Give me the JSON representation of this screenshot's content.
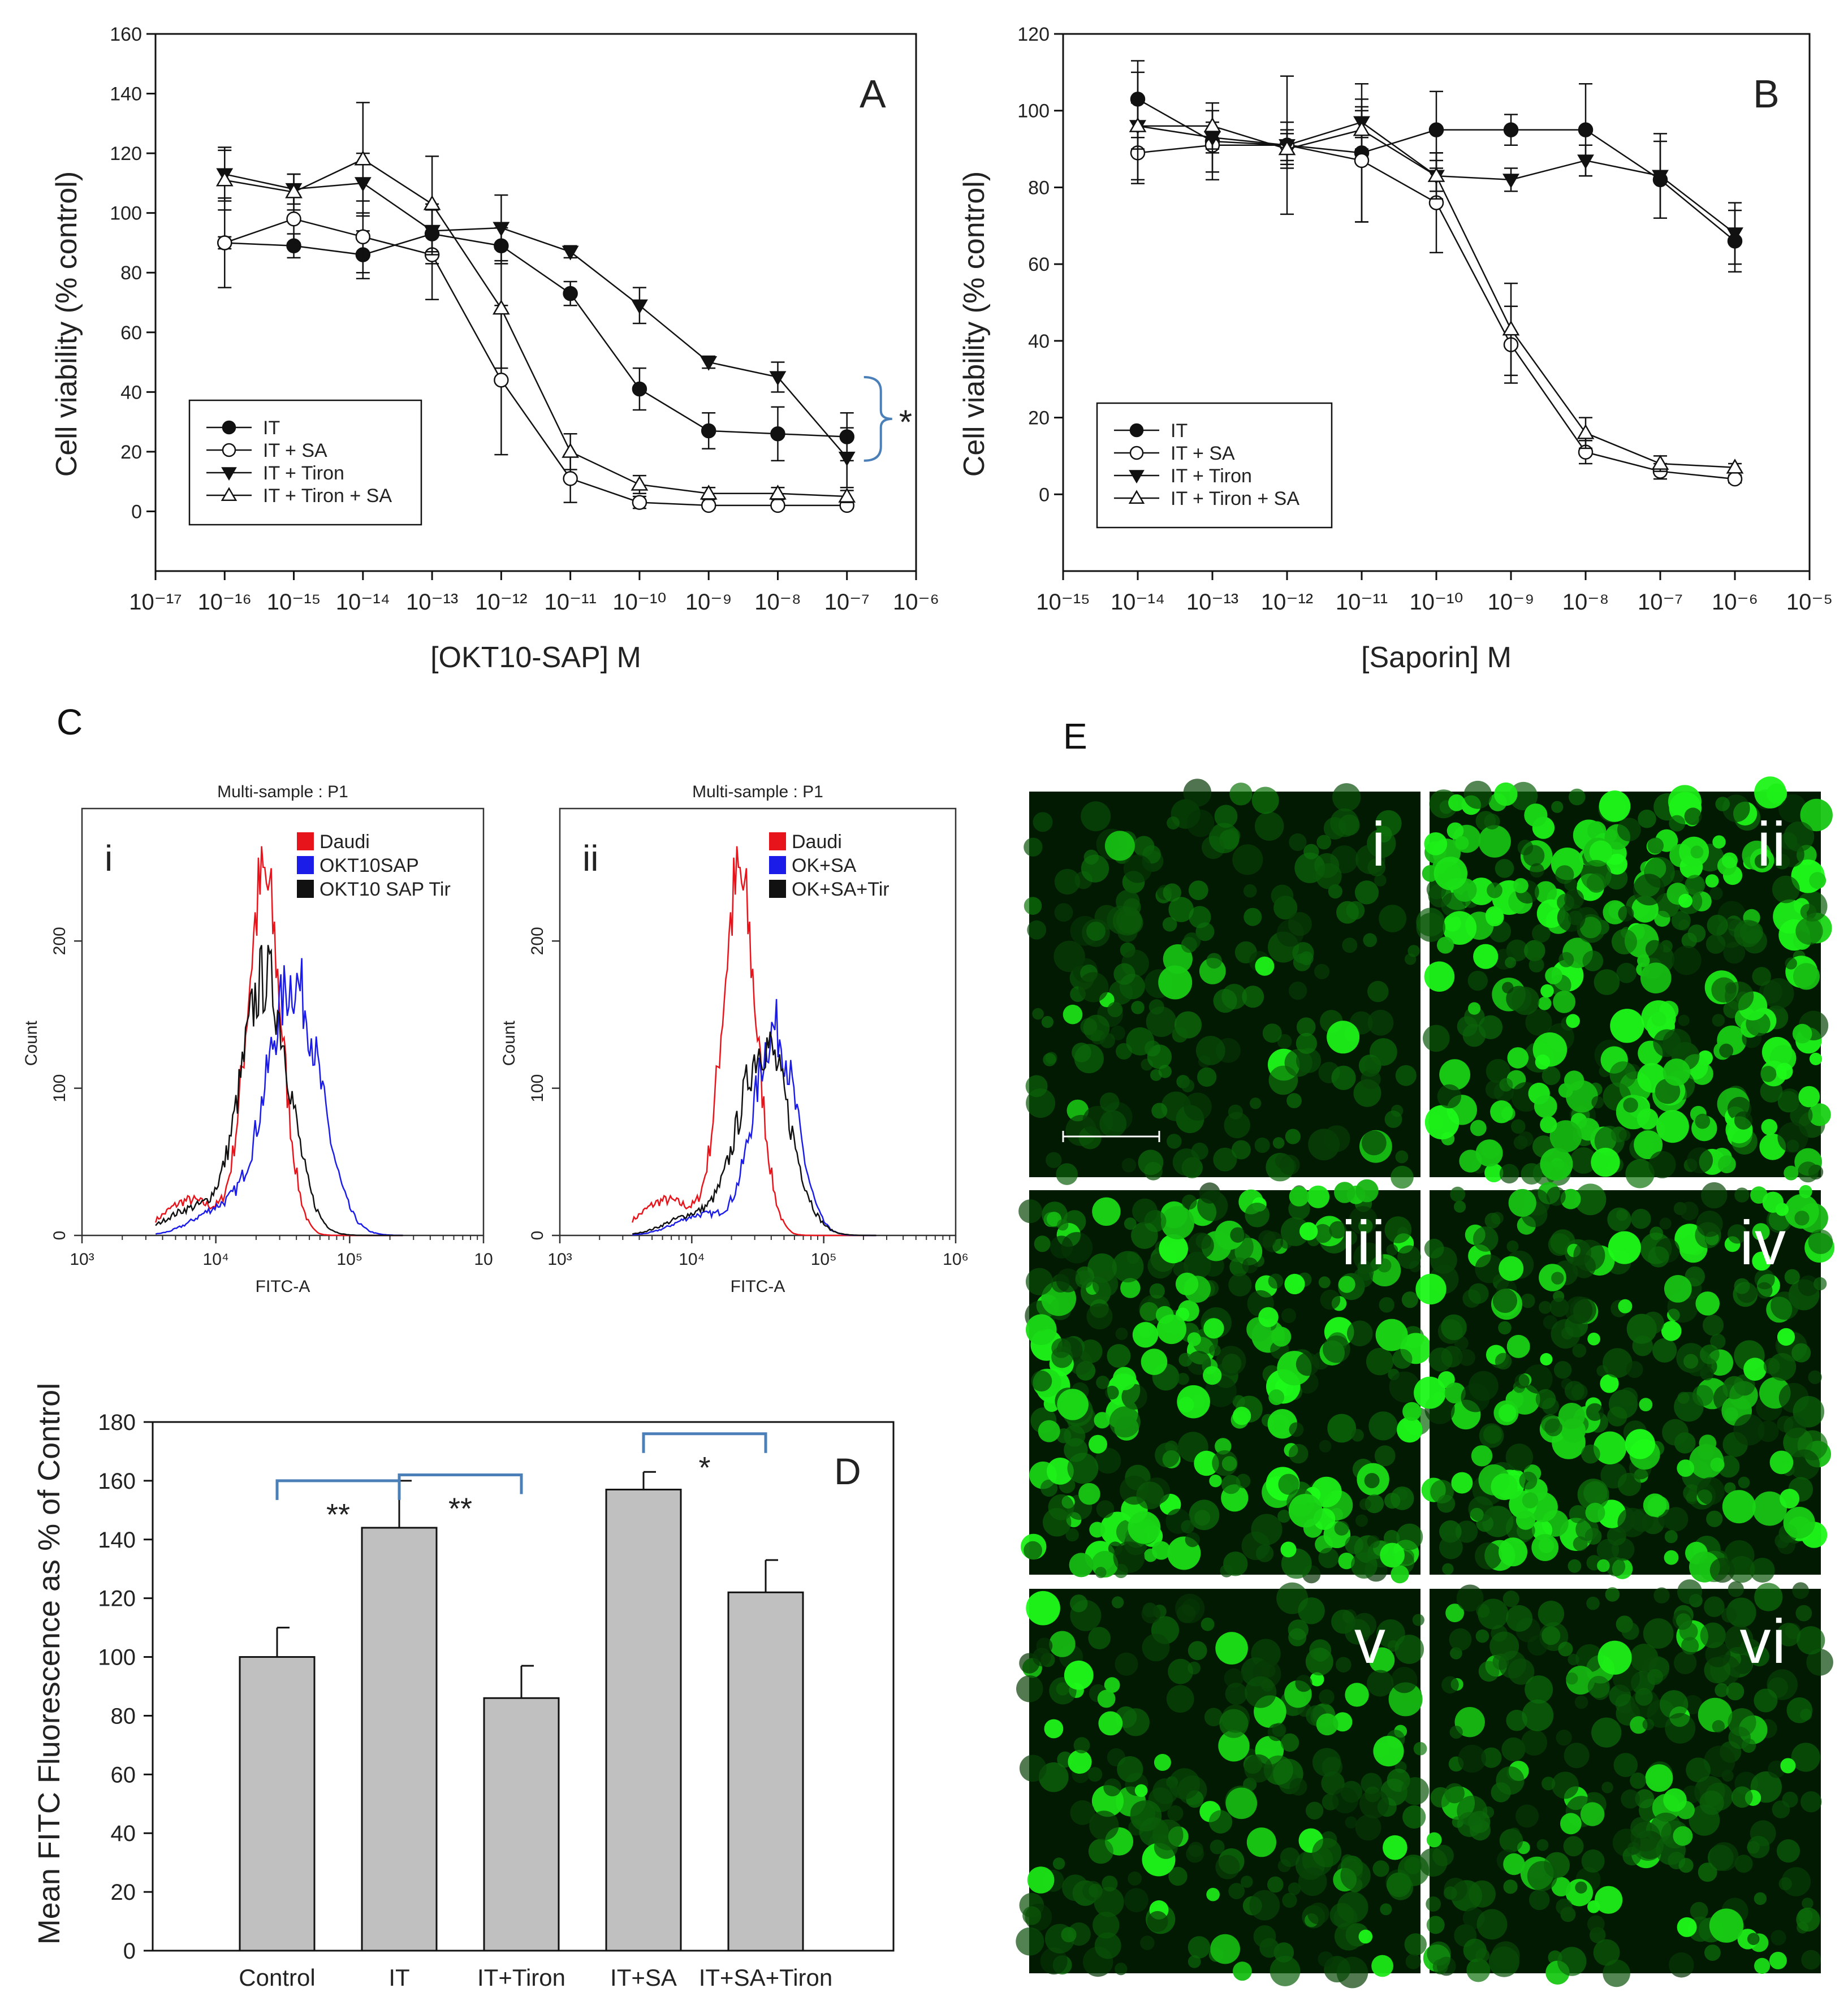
{
  "panels": {
    "A": "A",
    "B": "B",
    "C": "C",
    "D": "D",
    "E": "E"
  },
  "colors": {
    "red": "#e8141b",
    "blue": "#1c1ce8",
    "black": "#111111",
    "bar": "#c0c0c0",
    "bracket": "#4a7fb8",
    "cell": "#27c52c"
  },
  "chart_data": [
    {
      "id": "A",
      "type": "line",
      "xlabel": "[OKT10-SAP] M",
      "ylabel": "Cell viability (% control)",
      "xlog_exponents": [
        -17,
        -16,
        -15,
        -14,
        -13,
        -12,
        -11,
        -10,
        -9,
        -8,
        -7,
        -6
      ],
      "ylim": [
        -20,
        160
      ],
      "yticks": [
        0,
        20,
        40,
        60,
        80,
        100,
        120,
        140,
        160
      ],
      "annotation": "*",
      "legend_placement": "lower-left",
      "series": [
        {
          "name": "IT",
          "marker": "filled-circle",
          "x": [
            -16,
            -15,
            -14,
            -13,
            -12,
            -11,
            -10,
            -9,
            -8,
            -7
          ],
          "y": [
            90,
            89,
            86,
            93,
            89,
            73,
            41,
            27,
            26,
            25
          ],
          "err": [
            2,
            4,
            8,
            10,
            6,
            4,
            7,
            6,
            9,
            8
          ]
        },
        {
          "name": "IT + SA",
          "marker": "open-circle",
          "x": [
            -16,
            -15,
            -14,
            -13,
            -12,
            -11,
            -10,
            -9,
            -8,
            -7
          ],
          "y": [
            90,
            98,
            92,
            86,
            44,
            11,
            3,
            2,
            2,
            2
          ],
          "err": [
            15,
            8,
            12,
            15,
            25,
            8,
            2,
            1,
            1,
            1
          ]
        },
        {
          "name": "IT + Tiron",
          "marker": "filled-triangle-down",
          "x": [
            -16,
            -15,
            -14,
            -13,
            -12,
            -11,
            -10,
            -9,
            -8,
            -7
          ],
          "y": [
            113,
            108,
            110,
            94,
            95,
            87,
            69,
            50,
            45,
            18
          ],
          "err": [
            9,
            5,
            10,
            8,
            11,
            2,
            6,
            2,
            5,
            10
          ]
        },
        {
          "name": "IT + Tiron + SA",
          "marker": "open-triangle",
          "x": [
            -16,
            -15,
            -14,
            -13,
            -12,
            -11,
            -10,
            -9,
            -8,
            -7
          ],
          "y": [
            111,
            107,
            118,
            103,
            68,
            20,
            9,
            6,
            6,
            5
          ],
          "err": [
            10,
            6,
            19,
            16,
            20,
            6,
            3,
            2,
            2,
            2
          ]
        }
      ]
    },
    {
      "id": "B",
      "type": "line",
      "xlabel": "[Saporin] M",
      "ylabel": "Cell viability (% control)",
      "xlog_exponents": [
        -15,
        -14,
        -13,
        -12,
        -11,
        -10,
        -9,
        -8,
        -7,
        -6,
        -5
      ],
      "ylim": [
        -20,
        120
      ],
      "yticks": [
        0,
        20,
        40,
        60,
        80,
        100,
        120
      ],
      "legend_placement": "lower-left",
      "series": [
        {
          "name": "IT",
          "marker": "filled-circle",
          "x": [
            -14,
            -13,
            -12,
            -11,
            -10,
            -9,
            -8,
            -7,
            -6
          ],
          "y": [
            103,
            92,
            91,
            89,
            95,
            95,
            95,
            82,
            66
          ],
          "err": [
            10,
            8,
            18,
            18,
            10,
            4,
            12,
            10,
            8
          ]
        },
        {
          "name": "IT + SA",
          "marker": "open-circle",
          "x": [
            -14,
            -13,
            -12,
            -11,
            -10,
            -9,
            -8,
            -7,
            -6
          ],
          "y": [
            89,
            91,
            91,
            87,
            76,
            39,
            11,
            6,
            4
          ],
          "err": [
            8,
            9,
            6,
            16,
            13,
            10,
            3,
            2,
            1
          ]
        },
        {
          "name": "IT + Tiron",
          "marker": "filled-triangle-down",
          "x": [
            -14,
            -13,
            -12,
            -11,
            -10,
            -9,
            -8,
            -7,
            -6
          ],
          "y": [
            96,
            93,
            91,
            97,
            83,
            82,
            87,
            83,
            68
          ],
          "err": [
            14,
            4,
            4,
            4,
            4,
            3,
            4,
            11,
            8
          ]
        },
        {
          "name": "IT + Tiron + SA",
          "marker": "open-triangle",
          "x": [
            -14,
            -13,
            -12,
            -11,
            -10,
            -9,
            -8,
            -7,
            -6
          ],
          "y": [
            96,
            96,
            90,
            95,
            83,
            43,
            16,
            8,
            7
          ],
          "err": [
            6,
            6,
            4,
            5,
            6,
            12,
            4,
            2,
            1
          ]
        }
      ]
    },
    {
      "id": "Ci",
      "type": "histogram",
      "sublabel": "i",
      "title": "Multi-sample : P1",
      "xlabel": "FITC-A",
      "ylabel": "Count",
      "x_tick_labels": [
        "10³",
        "10⁴",
        "10⁵",
        "10"
      ],
      "yticks": [
        0,
        100,
        200
      ],
      "ylim": [
        0,
        290
      ],
      "series": [
        {
          "name": "Daudi",
          "color": "#e8141b",
          "peak_log10": 4.36,
          "width": 0.13,
          "peak_count": 240
        },
        {
          "name": "OKT10SAP",
          "color": "#1c1ce8",
          "peak_log10": 4.58,
          "width": 0.2,
          "peak_count": 172
        },
        {
          "name": "OKT10 SAP Tir",
          "color": "#111111",
          "peak_log10": 4.37,
          "width": 0.18,
          "peak_count": 175
        }
      ]
    },
    {
      "id": "Cii",
      "type": "histogram",
      "sublabel": "ii",
      "title": "Multi-sample : P1",
      "xlabel": "FITC-A",
      "ylabel": "Count",
      "x_tick_labels": [
        "10³",
        "10⁴",
        "10⁵",
        "10⁶"
      ],
      "yticks": [
        0,
        100,
        200
      ],
      "ylim": [
        0,
        290
      ],
      "series": [
        {
          "name": "Daudi",
          "color": "#e8141b",
          "peak_log10": 4.36,
          "width": 0.13,
          "peak_count": 240
        },
        {
          "name": "OK+SA",
          "color": "#1c1ce8",
          "peak_log10": 4.63,
          "width": 0.16,
          "peak_count": 140
        },
        {
          "name": "OK+SA+Tir",
          "color": "#111111",
          "peak_log10": 4.55,
          "width": 0.19,
          "peak_count": 130
        }
      ]
    },
    {
      "id": "D",
      "type": "bar",
      "ylabel": "Mean FITC Fluorescence as % of Control",
      "categories": [
        "Control",
        "IT",
        "IT+Tiron",
        "IT+SA",
        "IT+SA+Tiron"
      ],
      "values": [
        100,
        144,
        86,
        157,
        122
      ],
      "errors": [
        10,
        16,
        11,
        6,
        11
      ],
      "ylim": [
        0,
        180
      ],
      "yticks": [
        0,
        20,
        40,
        60,
        80,
        100,
        120,
        140,
        160,
        180
      ],
      "significance": [
        {
          "between": [
            0,
            1
          ],
          "label": "**",
          "level": 160
        },
        {
          "between": [
            1,
            2
          ],
          "label": "**",
          "level": 162
        },
        {
          "between": [
            3,
            4
          ],
          "label": "*",
          "level": 176
        }
      ]
    }
  ],
  "micrographs": [
    {
      "label": "i",
      "density": 0.35,
      "bright": 0.1,
      "scale_bar": true
    },
    {
      "label": "ii",
      "density": 1.0,
      "bright": 1.0,
      "scale_bar": false
    },
    {
      "label": "iii",
      "density": 0.85,
      "bright": 0.8,
      "scale_bar": false
    },
    {
      "label": "iv",
      "density": 0.8,
      "bright": 0.7,
      "scale_bar": false
    },
    {
      "label": "v",
      "density": 0.5,
      "bright": 0.35,
      "scale_bar": false
    },
    {
      "label": "vi",
      "density": 0.55,
      "bright": 0.4,
      "scale_bar": false
    }
  ]
}
